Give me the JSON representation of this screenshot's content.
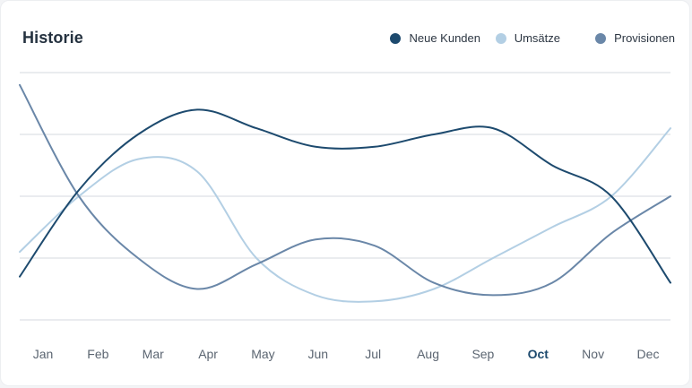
{
  "chart_data": {
    "type": "line",
    "title": "Historie",
    "categories": [
      "Jan",
      "Feb",
      "Mar",
      "Apr",
      "May",
      "Jun",
      "Jul",
      "Aug",
      "Sep",
      "Oct",
      "Nov",
      "Dec"
    ],
    "highlighted_category": "Oct",
    "ylim": [
      0,
      4
    ],
    "grid": true,
    "legend_placement": "top-right",
    "series": [
      {
        "name": "Neue Kunden",
        "color": "#1d4a6e",
        "values": [
          0.7,
          2.1,
          3.0,
          3.4,
          3.1,
          2.8,
          2.8,
          3.0,
          3.1,
          2.5,
          2.0,
          0.6
        ]
      },
      {
        "name": "Umsätze",
        "color": "#b3cfe4",
        "values": [
          1.1,
          2.0,
          2.6,
          2.4,
          1.0,
          0.4,
          0.3,
          0.5,
          1.0,
          1.5,
          2.0,
          3.1
        ]
      },
      {
        "name": "Provisionen",
        "color": "#6a87a8",
        "values": [
          3.8,
          2.0,
          1.0,
          0.5,
          0.9,
          1.3,
          1.2,
          0.6,
          0.4,
          0.6,
          1.4,
          2.0
        ]
      }
    ]
  }
}
